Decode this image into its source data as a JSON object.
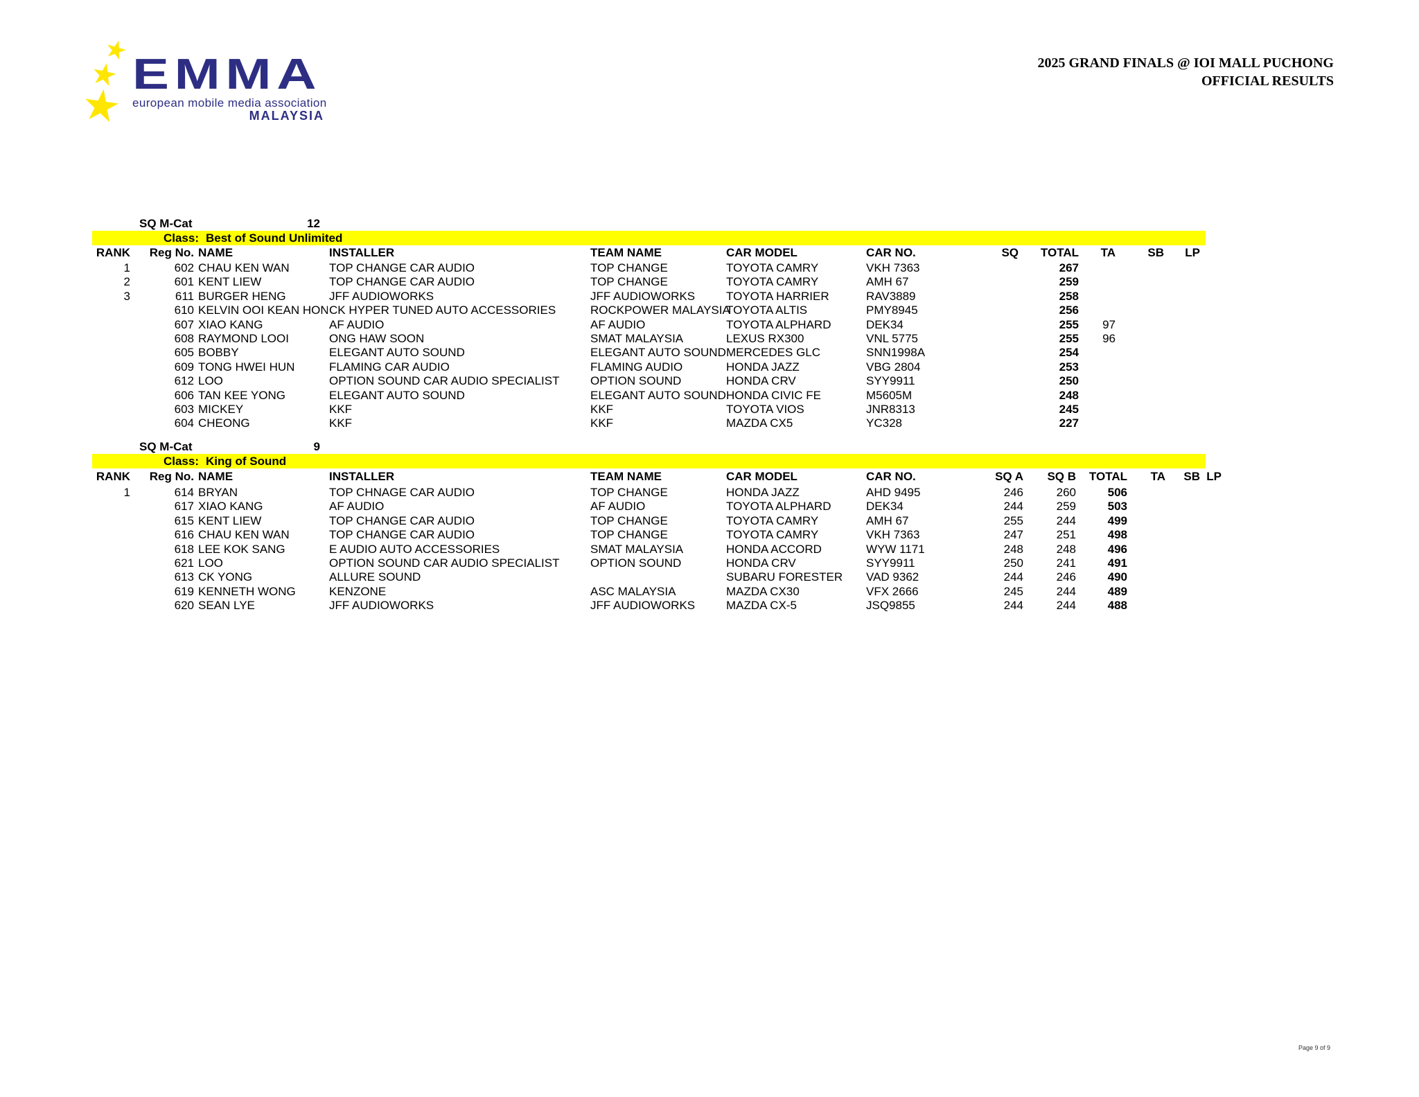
{
  "logo": {
    "wordmark": "EMMA",
    "tagline": "european mobile media association",
    "region": "MALAYSIA",
    "star_glyph": "★",
    "colors": {
      "navy": "#2d2e83",
      "star_yellow": "#ffe600"
    }
  },
  "header": {
    "event_title": "2025 GRAND FINALS @ IOI MALL PUCHONG",
    "subtitle": "OFFICIAL RESULTS"
  },
  "highlight_color": "#ffff00",
  "sections": [
    {
      "category_label": "SQ M-Cat",
      "category_count": "12",
      "class_label": "Class:",
      "class_name": "Best of Sound Unlimited",
      "columns": [
        {
          "id": "rank",
          "label": "RANK"
        },
        {
          "id": "reg",
          "label": "Reg No."
        },
        {
          "id": "name",
          "label": "NAME"
        },
        {
          "id": "installer",
          "label": "INSTALLER"
        },
        {
          "id": "team",
          "label": "TEAM NAME"
        },
        {
          "id": "model",
          "label": "CAR MODEL"
        },
        {
          "id": "carno",
          "label": "CAR NO."
        },
        {
          "id": "sq",
          "label": "SQ"
        },
        {
          "id": "total",
          "label": "TOTAL"
        },
        {
          "id": "ta",
          "label": "TA"
        },
        {
          "id": "sb",
          "label": "SB"
        },
        {
          "id": "lp",
          "label": "LP"
        }
      ],
      "rows": [
        {
          "rank": "1",
          "reg": "602",
          "name": "CHAU KEN WAN",
          "installer": "TOP CHANGE CAR AUDIO",
          "team": "TOP CHANGE",
          "model": "TOYOTA CAMRY",
          "carno": "VKH 7363",
          "total": "267"
        },
        {
          "rank": "2",
          "reg": "601",
          "name": "KENT LIEW",
          "installer": "TOP CHANGE CAR AUDIO",
          "team": "TOP CHANGE",
          "model": "TOYOTA CAMRY",
          "carno": "AMH 67",
          "total": "259"
        },
        {
          "rank": "3",
          "reg": "611",
          "name": "BURGER HENG",
          "installer": "JFF AUDIOWORKS",
          "team": "JFF AUDIOWORKS",
          "model": "TOYOTA HARRIER",
          "carno": "RAV3889",
          "total": "258"
        },
        {
          "reg": "610",
          "name": "KELVIN OOI KEAN HONG",
          "installer": "CK HYPER TUNED AUTO ACCESSORIES",
          "team": "ROCKPOWER MALAYSIA",
          "model": "TOYOTA ALTIS",
          "carno": "PMY8945",
          "total": "256"
        },
        {
          "reg": "607",
          "name": "XIAO KANG",
          "installer": "AF AUDIO",
          "team": "AF AUDIO",
          "model": "TOYOTA ALPHARD",
          "carno": "DEK34",
          "total": "255",
          "ta": "97"
        },
        {
          "reg": "608",
          "name": "RAYMOND LOOI",
          "installer": "ONG HAW SOON",
          "team": "SMAT MALAYSIA",
          "model": "LEXUS RX300",
          "carno": "VNL 5775",
          "total": "255",
          "ta": "96"
        },
        {
          "reg": "605",
          "name": "BOBBY",
          "installer": "ELEGANT AUTO SOUND",
          "team": "ELEGANT AUTO SOUND",
          "model": "MERCEDES GLC",
          "carno": "SNN1998A",
          "total": "254"
        },
        {
          "reg": "609",
          "name": "TONG HWEI HUN",
          "installer": "FLAMING CAR AUDIO",
          "team": "FLAMING AUDIO",
          "model": "HONDA JAZZ",
          "carno": "VBG 2804",
          "total": "253"
        },
        {
          "reg": "612",
          "name": "LOO",
          "installer": "OPTION SOUND CAR AUDIO SPECIALIST",
          "team": "OPTION SOUND",
          "model": "HONDA CRV",
          "carno": "SYY9911",
          "total": "250"
        },
        {
          "reg": "606",
          "name": "TAN KEE YONG",
          "installer": "ELEGANT AUTO SOUND",
          "team": "ELEGANT AUTO SOUND",
          "model": "HONDA CIVIC FE",
          "carno": "M5605M",
          "total": "248"
        },
        {
          "reg": "603",
          "name": "MICKEY",
          "installer": "KKF",
          "team": "KKF",
          "model": "TOYOTA VIOS",
          "carno": "JNR8313",
          "total": "245"
        },
        {
          "reg": "604",
          "name": "CHEONG",
          "installer": "KKF",
          "team": "KKF",
          "model": "MAZDA CX5",
          "carno": "YC328",
          "total": "227"
        }
      ]
    },
    {
      "category_label": "SQ M-Cat",
      "category_count": "9",
      "class_label": "Class:",
      "class_name": "King of Sound",
      "columns": [
        {
          "id": "rank",
          "label": "RANK"
        },
        {
          "id": "reg",
          "label": "Reg No."
        },
        {
          "id": "name",
          "label": "NAME"
        },
        {
          "id": "installer",
          "label": "INSTALLER"
        },
        {
          "id": "team",
          "label": "TEAM NAME"
        },
        {
          "id": "model",
          "label": "CAR MODEL"
        },
        {
          "id": "carno",
          "label": "CAR NO."
        },
        {
          "id": "sqa",
          "label": "SQ A"
        },
        {
          "id": "sqb",
          "label": "SQ B"
        },
        {
          "id": "total",
          "label": "TOTAL"
        },
        {
          "id": "ta",
          "label": "TA"
        },
        {
          "id": "sb",
          "label": "SB"
        },
        {
          "id": "lp",
          "label": "LP"
        }
      ],
      "rows": [
        {
          "rank": "1",
          "reg": "614",
          "name": "BRYAN",
          "installer": "TOP CHNAGE CAR AUDIO",
          "team": "TOP CHANGE",
          "model": "HONDA JAZZ",
          "carno": "AHD 9495",
          "sqa": "246",
          "sqb": "260",
          "total": "506"
        },
        {
          "reg": "617",
          "name": "XIAO KANG",
          "installer": "AF AUDIO",
          "team": "AF AUDIO",
          "model": "TOYOTA ALPHARD",
          "carno": "DEK34",
          "sqa": "244",
          "sqb": "259",
          "total": "503"
        },
        {
          "reg": "615",
          "name": "KENT LIEW",
          "installer": "TOP CHANGE CAR AUDIO",
          "team": "TOP CHANGE",
          "model": "TOYOTA CAMRY",
          "carno": "AMH 67",
          "sqa": "255",
          "sqb": "244",
          "total": "499"
        },
        {
          "reg": "616",
          "name": "CHAU KEN WAN",
          "installer": "TOP CHANGE CAR AUDIO",
          "team": "TOP CHANGE",
          "model": "TOYOTA CAMRY",
          "carno": "VKH 7363",
          "sqa": "247",
          "sqb": "251",
          "total": "498"
        },
        {
          "reg": "618",
          "name": "LEE KOK SANG",
          "installer": "E AUDIO AUTO ACCESSORIES",
          "team": "SMAT MALAYSIA",
          "model": "HONDA ACCORD",
          "carno": "WYW 1171",
          "sqa": "248",
          "sqb": "248",
          "total": "496"
        },
        {
          "reg": "621",
          "name": "LOO",
          "installer": "OPTION SOUND CAR AUDIO SPECIALIST",
          "team": "OPTION SOUND",
          "model": "HONDA CRV",
          "carno": "SYY9911",
          "sqa": "250",
          "sqb": "241",
          "total": "491"
        },
        {
          "reg": "613",
          "name": "CK YONG",
          "installer": "ALLURE SOUND",
          "team": "",
          "model": "SUBARU FORESTER",
          "carno": "VAD 9362",
          "sqa": "244",
          "sqb": "246",
          "total": "490"
        },
        {
          "reg": "619",
          "name": "KENNETH WONG",
          "installer": "KENZONE",
          "team": "ASC MALAYSIA",
          "model": "MAZDA CX30",
          "carno": "VFX 2666",
          "sqa": "245",
          "sqb": "244",
          "total": "489"
        },
        {
          "reg": "620",
          "name": "SEAN LYE",
          "installer": "JFF AUDIOWORKS",
          "team": "JFF AUDIOWORKS",
          "model": "MAZDA CX-5",
          "carno": "JSQ9855",
          "sqa": "244",
          "sqb": "244",
          "total": "488"
        }
      ]
    }
  ],
  "footer": {
    "page_label": "Page 9 of 9"
  }
}
